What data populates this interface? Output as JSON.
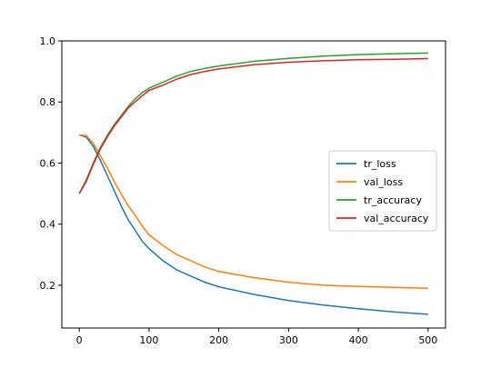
{
  "chart_data": {
    "type": "line",
    "title": "",
    "xlabel": "",
    "ylabel": "",
    "xlim": [
      -25,
      525
    ],
    "ylim": [
      0.06,
      1.0
    ],
    "x_ticks": [
      0,
      100,
      200,
      300,
      400,
      500
    ],
    "y_ticks": [
      0.2,
      0.4,
      0.6,
      0.8,
      1.0
    ],
    "x_tick_labels": [
      "0",
      "100",
      "200",
      "300",
      "400",
      "500"
    ],
    "y_tick_labels": [
      "0.2",
      "0.4",
      "0.6",
      "0.8",
      "1.0"
    ],
    "grid": false,
    "legend_position": "center-right",
    "x": [
      0,
      10,
      20,
      30,
      40,
      50,
      60,
      70,
      80,
      90,
      100,
      120,
      140,
      160,
      180,
      200,
      250,
      300,
      350,
      400,
      450,
      500
    ],
    "series": [
      {
        "name": "tr_loss",
        "color": "#1f77b4",
        "values": [
          0.692,
          0.685,
          0.655,
          0.61,
          0.56,
          0.51,
          0.46,
          0.415,
          0.38,
          0.345,
          0.32,
          0.28,
          0.25,
          0.23,
          0.21,
          0.195,
          0.17,
          0.15,
          0.135,
          0.123,
          0.113,
          0.105
        ]
      },
      {
        "name": "val_loss",
        "color": "#ff7f0e",
        "values": [
          0.692,
          0.69,
          0.665,
          0.625,
          0.585,
          0.54,
          0.5,
          0.46,
          0.43,
          0.395,
          0.365,
          0.33,
          0.3,
          0.28,
          0.26,
          0.245,
          0.225,
          0.21,
          0.2,
          0.196,
          0.193,
          0.19
        ]
      },
      {
        "name": "tr_accuracy",
        "color": "#2ca02c",
        "values": [
          0.5,
          0.545,
          0.6,
          0.65,
          0.69,
          0.725,
          0.755,
          0.785,
          0.81,
          0.83,
          0.845,
          0.865,
          0.885,
          0.9,
          0.91,
          0.918,
          0.933,
          0.943,
          0.95,
          0.955,
          0.958,
          0.96
        ]
      },
      {
        "name": "val_accuracy",
        "color": "#d62728",
        "values": [
          0.5,
          0.54,
          0.595,
          0.645,
          0.685,
          0.72,
          0.75,
          0.78,
          0.8,
          0.82,
          0.838,
          0.855,
          0.875,
          0.89,
          0.9,
          0.908,
          0.922,
          0.93,
          0.935,
          0.938,
          0.94,
          0.942
        ]
      }
    ]
  }
}
